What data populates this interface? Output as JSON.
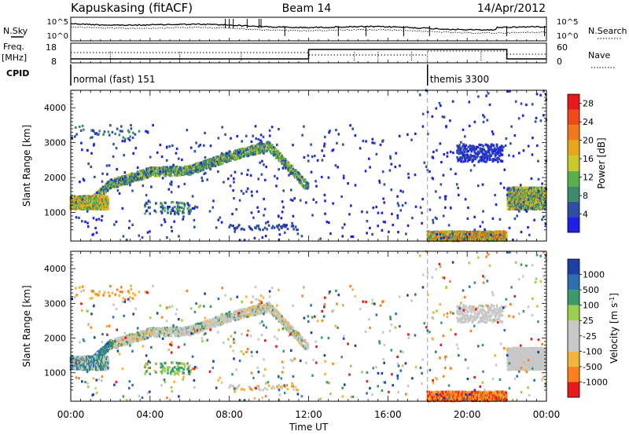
{
  "header": {
    "station": "Kapuskasing (fitACF)",
    "beam": "Beam 14",
    "date": "14/Apr/2012"
  },
  "top_panel": {
    "left_label": "N.Sky",
    "right_label": "N.Search",
    "yticks_left": [
      "10^5",
      "10^0"
    ],
    "yticks_right": [
      "10^5",
      "10^0"
    ]
  },
  "freq_panel": {
    "left_label_1": "Freq.",
    "left_label_2": "[MHz]",
    "right_label": "Nave",
    "yticks_left": [
      "18",
      "8"
    ],
    "yticks_right": [
      "60",
      "0"
    ]
  },
  "cpid": {
    "label": "CPID",
    "modes": [
      {
        "name": "normal (fast) 151",
        "start_h": 0
      },
      {
        "name": "themis 3300",
        "start_h": 18
      }
    ]
  },
  "x_axis": {
    "label": "Time UT",
    "ticks": [
      "00:00",
      "04:00",
      "08:00",
      "12:00",
      "16:00",
      "20:00",
      "00:00"
    ],
    "tick_hours": [
      0,
      4,
      8,
      12,
      16,
      20,
      24
    ]
  },
  "colors": {
    "power": [
      "#1f1fe6",
      "#2e4ea6",
      "#3f8a6b",
      "#5ab04a",
      "#c9c92a",
      "#e8a61a",
      "#f07a1a",
      "#ee4a1a",
      "#e61a1a"
    ],
    "velocity": [
      "#e61a1a",
      "#ff7f1a",
      "#f2b43a",
      "#c8c8c8",
      "#c8c8c8",
      "#9ad04a",
      "#3c9a6a",
      "#2d6fb0",
      "#1f3fa8"
    ]
  },
  "chart_data": [
    {
      "type": "heatmap",
      "title": "",
      "ylabel": "Slant Range [km]",
      "yticks": [
        "1000",
        "2000",
        "3000",
        "4000"
      ],
      "ylim": [
        180,
        4500
      ],
      "xlim": [
        0,
        24
      ],
      "colorbar_label": "Power [dB]",
      "colorbar_ticks": [
        "4",
        "8",
        "12",
        "16",
        "20",
        "24",
        "28"
      ],
      "colorbar_range": [
        0,
        30
      ],
      "features": [
        {
          "name": "main band",
          "track": [
            [
              0.1,
              1300
            ],
            [
              1,
              1300
            ],
            [
              2,
              1800
            ],
            [
              4,
              2150
            ],
            [
              6,
              2200
            ],
            [
              8,
              2600
            ],
            [
              10,
              2900
            ],
            [
              11,
              2300
            ],
            [
              12,
              1700
            ]
          ]
        },
        {
          "name": "near band",
          "range_km": [
            900,
            1300
          ],
          "hours": [
            3.6,
            6.2
          ]
        },
        {
          "name": "themis near",
          "range_km": [
            200,
            450
          ],
          "hours": [
            18,
            22
          ]
        },
        {
          "name": "themis far",
          "range_km": [
            2400,
            2900
          ],
          "hours": [
            19.5,
            21.8
          ]
        },
        {
          "name": "late band",
          "range_km": [
            1100,
            1700
          ],
          "hours": [
            22,
            24
          ]
        }
      ]
    },
    {
      "type": "heatmap",
      "title": "",
      "ylabel": "Slant Range [km]",
      "yticks": [
        "1000",
        "2000",
        "3000",
        "4000"
      ],
      "ylim": [
        180,
        4500
      ],
      "xlim": [
        0,
        24
      ],
      "colorbar_label": "Velocity [m s",
      "colorbar_unit_sup": "-1",
      "colorbar_unit_close": "]",
      "colorbar_ticks": [
        "1000",
        "500",
        "100",
        "25",
        "-25",
        "-100",
        "-500",
        "-1000"
      ],
      "colorbar_range": [
        -1000,
        1000
      ]
    }
  ]
}
